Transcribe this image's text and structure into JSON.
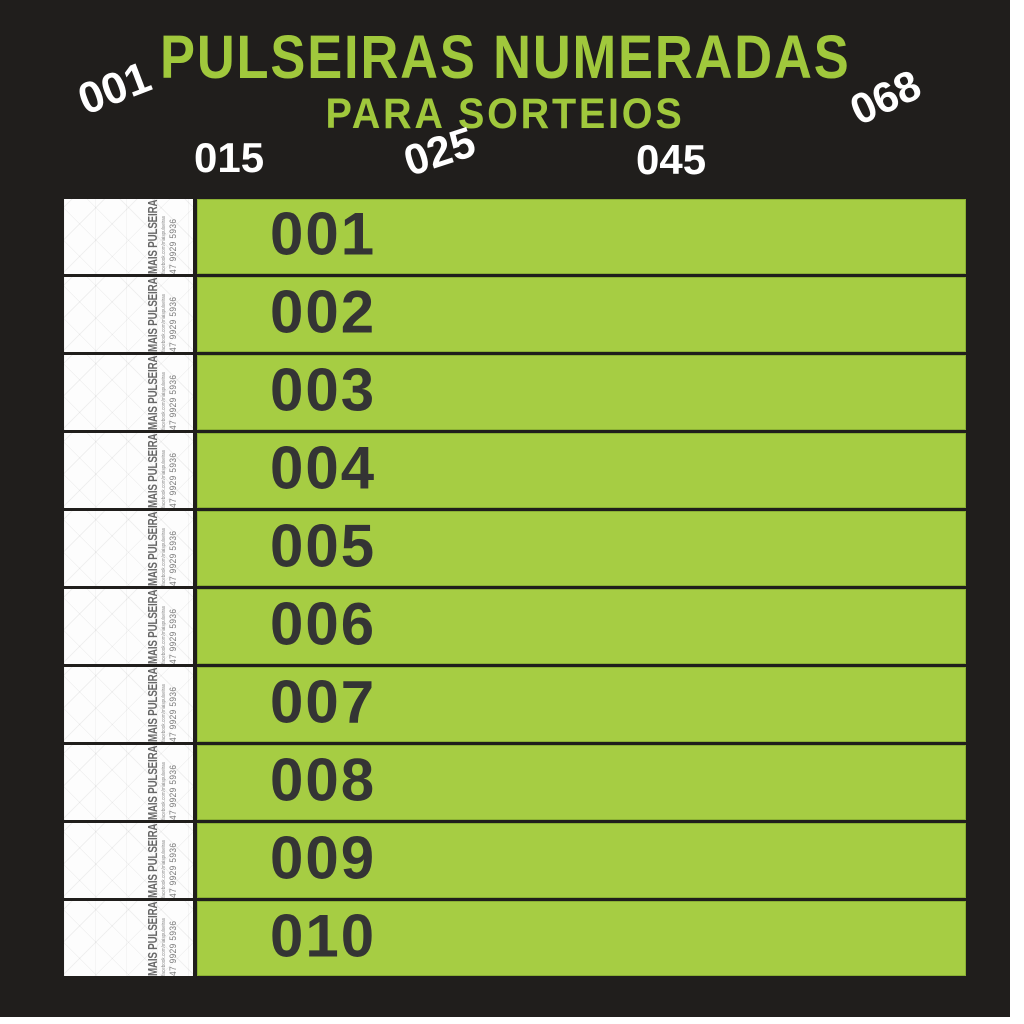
{
  "title": {
    "line1": "PULSEIRAS NUMERADAS",
    "line2": "PARA SORTEIOS"
  },
  "scattered_numbers": {
    "top_left": "001",
    "mid_left": "015",
    "mid_center": "025",
    "mid_right": "045",
    "top_right": "068"
  },
  "stub": {
    "brand": "MAIS PULSEIRAS",
    "url": "facebook.com/maispulseiras",
    "phone": "47 9929 5936"
  },
  "rows": [
    "001",
    "002",
    "003",
    "004",
    "005",
    "006",
    "007",
    "008",
    "009",
    "010"
  ],
  "colors": {
    "background": "#201e1c",
    "band_green": "#a6cd43",
    "title_green": "#a0c83c",
    "band_number_dark": "#343434",
    "scatter_white": "#ffffff",
    "stub_text_gray": "#6f6f6f",
    "page_edge_white": "#ffffff"
  }
}
